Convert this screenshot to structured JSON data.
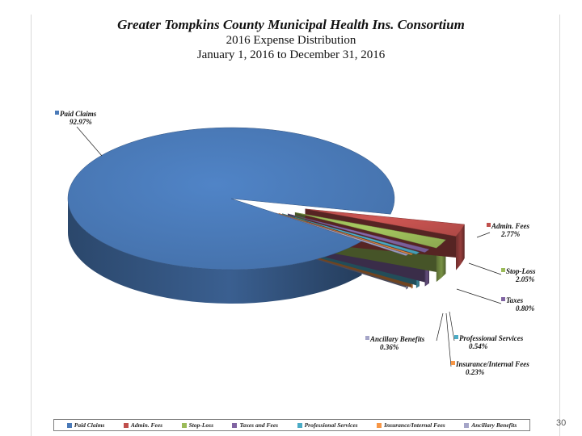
{
  "chart_data": {
    "type": "pie",
    "title": "Greater Tompkins County Municipal Health Ins. Consortium",
    "subtitle": "2016 Expense Distribution",
    "period": "January 1, 2016 to December 31, 2016",
    "categories": [
      "Paid Claims",
      "Admin. Fees",
      "Stop-Loss",
      "Taxes",
      "Professional Services",
      "Insurance/Internal Fees",
      "Ancillary Benefits"
    ],
    "values": [
      92.97,
      2.77,
      2.05,
      0.8,
      0.54,
      0.23,
      0.36
    ],
    "labels": [
      "Paid Claims",
      "Admin. Fees",
      "Stop-Loss",
      "Taxes",
      "Professional Services",
      "Insurance/Internal Fees",
      "Ancillary Benefits"
    ],
    "value_labels": [
      "92.97%",
      "2.77%",
      "2.05%",
      "0.80%",
      "0.54%",
      "0.23%",
      "0.36%"
    ],
    "colors": [
      "#4a7ab8",
      "#c0504d",
      "#9bbb59",
      "#8064a2",
      "#4bacc6",
      "#f79646",
      "#a5a5c8"
    ],
    "legend": {
      "entries": [
        "Paid Claims",
        "Admin. Fees",
        "Stop-Loss",
        "Taxes and Fees",
        "Professional Services",
        "Insurance/Internal Fees",
        "Ancillary Benefits"
      ],
      "position": "bottom"
    }
  },
  "page_number": "30"
}
